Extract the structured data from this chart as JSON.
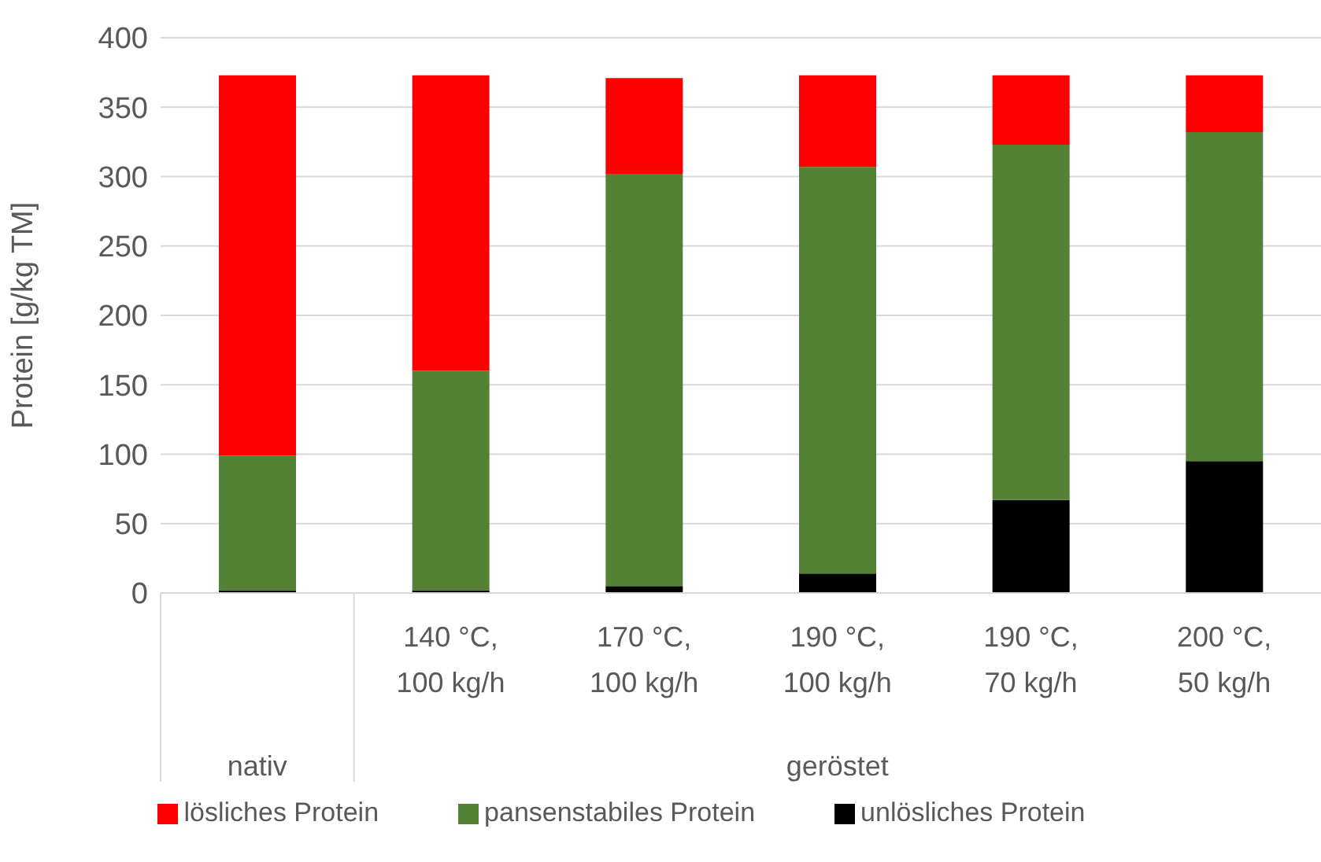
{
  "chart_data": {
    "type": "bar",
    "stacked": true,
    "ylabel": "Protein [g/kg TM]",
    "categories": [
      null,
      "140 °C, 100 kg/h",
      "170 °C, 100 kg/h",
      "190 °C, 100 kg/h",
      "190 °C, 70 kg/h",
      "200 °C, 50 kg/h"
    ],
    "series": [
      {
        "name": "unlösliches Protein",
        "color": "#000000",
        "values": [
          2,
          2,
          5,
          14,
          67,
          95
        ]
      },
      {
        "name": "pansenstabiles Protein",
        "color": "#548235",
        "values": [
          97,
          158,
          297,
          293,
          256,
          237
        ]
      },
      {
        "name": "lösliches Protein",
        "color": "#ff0000",
        "values": [
          274,
          213,
          69,
          66,
          50,
          41
        ]
      }
    ],
    "annotations": [
      "nativ",
      "geröstet"
    ],
    "ylim": [
      0,
      400
    ],
    "yticks": [
      0,
      50,
      100,
      150,
      200,
      250,
      300,
      350,
      400
    ],
    "grid": "y",
    "legend": "bottom"
  }
}
